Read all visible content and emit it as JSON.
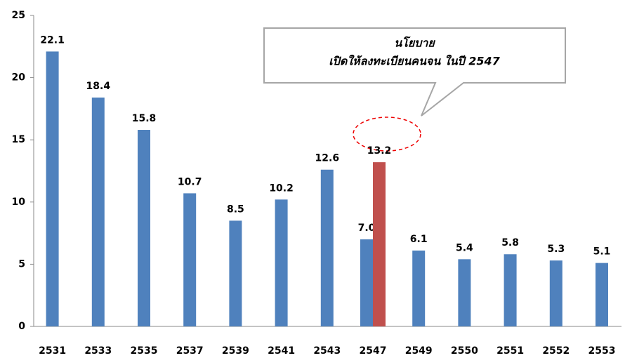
{
  "chart_data": {
    "type": "bar",
    "categories": [
      "2531",
      "2533",
      "2535",
      "2537",
      "2539",
      "2541",
      "2543",
      "2547",
      "2549",
      "2550",
      "2551",
      "2552",
      "2553"
    ],
    "series": [
      {
        "color": "#4f81bd",
        "values": [
          22.1,
          18.4,
          15.8,
          10.7,
          8.5,
          10.2,
          12.6,
          7.0,
          6.1,
          5.4,
          5.8,
          5.3,
          5.1
        ],
        "value_labels": [
          "22.1",
          "18.4",
          "15.8",
          "10.7",
          "8.5",
          "10.2",
          "12.6",
          "7.0",
          "6.1",
          "5.4",
          "5.8",
          "5.3",
          "5.1"
        ]
      },
      {
        "color": "#c0504d",
        "values": [
          null,
          null,
          null,
          null,
          null,
          null,
          null,
          13.2,
          null,
          null,
          null,
          null,
          null
        ],
        "value_labels": [
          null,
          null,
          null,
          null,
          null,
          null,
          null,
          "13.2",
          null,
          null,
          null,
          null,
          null
        ]
      }
    ],
    "annotation": [
      "นโยบาย",
      "เปิดให้ลงทะเบียนคนจน ในปี 2547"
    ],
    "ylim": [
      0,
      25
    ],
    "yticks": [
      0,
      5,
      10,
      15,
      20,
      25
    ],
    "grid": false
  }
}
